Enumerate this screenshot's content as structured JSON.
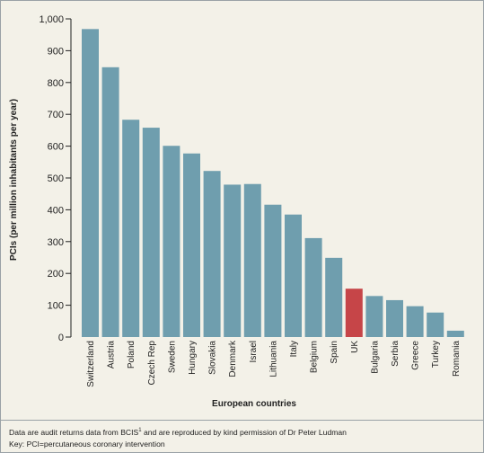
{
  "chart_data": {
    "type": "bar",
    "xlabel": "European countries",
    "ylabel": "PCIs (per million inhabitants per year)",
    "ylim": [
      0,
      1000
    ],
    "yticks": [
      0,
      100,
      200,
      300,
      400,
      500,
      600,
      700,
      800,
      900,
      1000
    ],
    "ytick_labels": [
      "0",
      "100",
      "200",
      "300",
      "400",
      "500",
      "600",
      "700",
      "800",
      "900",
      "1,000"
    ],
    "categories": [
      "Switzerland",
      "Austria",
      "Poland",
      "Czech Rep",
      "Sweden",
      "Hungary",
      "Slovakia",
      "Denmark",
      "Israel",
      "Lithuania",
      "Italy",
      "Belgium",
      "Spain",
      "UK",
      "Bulgaria",
      "Serbia",
      "Greece",
      "Turkey",
      "Romania"
    ],
    "values": [
      968,
      848,
      683,
      658,
      601,
      577,
      522,
      479,
      481,
      416,
      385,
      311,
      249,
      152,
      129,
      116,
      97,
      77,
      20
    ],
    "highlight": "UK",
    "colors": {
      "bar": "#6f9eae",
      "highlight": "#c64548",
      "axis": "#222222"
    },
    "grid": false
  },
  "footnote": {
    "line1_before": "Data are audit returns data from BCIS",
    "line1_sup": "1",
    "line1_after": " and are reproduced by kind permission of Dr Peter Ludman",
    "line2": "Key: PCI=percutaneous coronary intervention"
  }
}
